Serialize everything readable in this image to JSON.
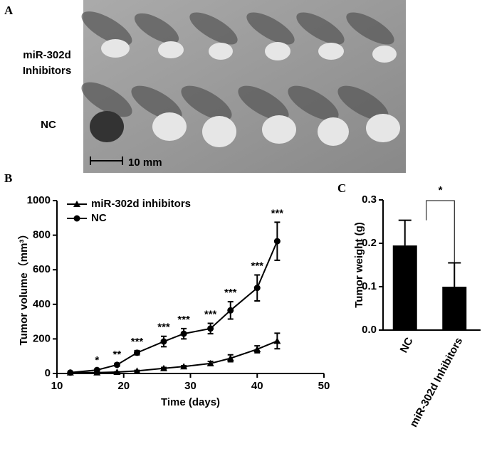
{
  "photo": {
    "panel_label": "A",
    "row_labels": [
      [
        "miR-302d",
        "Inhibitors"
      ],
      [
        "NC"
      ]
    ],
    "scale_bar": "10 mm"
  },
  "chart_data": [
    {
      "type": "line",
      "panel_label": "B",
      "xlabel": "Time (days)",
      "ylabel": "Tumor volume（mm³）",
      "x": [
        12,
        16,
        19,
        22,
        26,
        29,
        33,
        36,
        40,
        43
      ],
      "series": [
        {
          "name": "miR-302d inhibitors",
          "color": "#000000",
          "marker": "triangle",
          "values": [
            5,
            5,
            8,
            15,
            30,
            40,
            58,
            88,
            140,
            188
          ],
          "errors": [
            2,
            2,
            2,
            3,
            5,
            5,
            12,
            20,
            20,
            45
          ]
        },
        {
          "name": "NC",
          "color": "#000000",
          "marker": "circle",
          "values": [
            5,
            20,
            50,
            120,
            185,
            230,
            260,
            365,
            495,
            765
          ],
          "errors": [
            3,
            5,
            8,
            12,
            30,
            30,
            30,
            50,
            75,
            110
          ]
        }
      ],
      "annotations": [
        {
          "x": 16,
          "text": "*"
        },
        {
          "x": 19,
          "text": "**"
        },
        {
          "x": 22,
          "text": "***"
        },
        {
          "x": 26,
          "text": "***"
        },
        {
          "x": 29,
          "text": "***"
        },
        {
          "x": 33,
          "text": "***"
        },
        {
          "x": 36,
          "text": "***"
        },
        {
          "x": 40,
          "text": "***"
        },
        {
          "x": 43,
          "text": "***"
        }
      ],
      "xlim": [
        10,
        50
      ],
      "xticks": [
        10,
        20,
        30,
        40,
        50
      ],
      "ylim": [
        0,
        1000
      ],
      "yticks": [
        0,
        200,
        400,
        600,
        800,
        1000
      ],
      "legend": "upper-left"
    },
    {
      "type": "bar",
      "panel_label": "C",
      "ylabel": "Tumor weight (g)",
      "categories": [
        "NC",
        "miR-302d Inhibitors"
      ],
      "values": [
        0.195,
        0.1
      ],
      "errors": [
        0.058,
        0.055
      ],
      "color": "#000000",
      "significance": "*",
      "ylim": [
        0,
        0.3
      ],
      "yticks": [
        {
          "value": 0,
          "label": "0.0"
        },
        0.1,
        0.2,
        0.3
      ]
    }
  ]
}
